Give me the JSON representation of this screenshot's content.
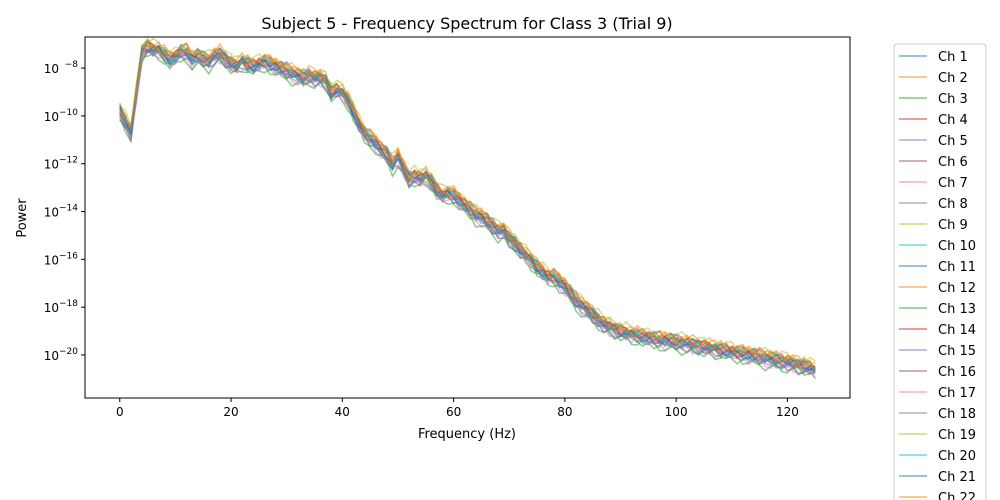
{
  "chart_data": {
    "type": "line",
    "title": "Subject 5 - Frequency Spectrum for Class 3 (Trial 9)",
    "xlabel": "Frequency (Hz)",
    "ylabel": "Power",
    "xlim": [
      -6.25,
      131.25
    ],
    "ylim_log10": [
      -21.8,
      -6.7
    ],
    "y_scale": "log",
    "x_ticks": [
      0,
      20,
      40,
      60,
      80,
      100,
      120
    ],
    "x_tick_labels": [
      "0",
      "20",
      "40",
      "60",
      "80",
      "100",
      "120"
    ],
    "y_ticks_exponent": [
      -8,
      -10,
      -12,
      -14,
      -16,
      -18,
      -20
    ],
    "y_tick_base": "10",
    "y_tick_exponent_labels": [
      "−8",
      "−10",
      "−12",
      "−14",
      "−16",
      "−18",
      "−20"
    ],
    "grid": false,
    "legend_position": "outside-right",
    "x": [
      0,
      1,
      2,
      3,
      4,
      5,
      6,
      7,
      8,
      9,
      10,
      11,
      12,
      13,
      14,
      15,
      16,
      17,
      18,
      19,
      20,
      21,
      22,
      23,
      24,
      25,
      26,
      27,
      28,
      29,
      30,
      31,
      32,
      33,
      34,
      35,
      36,
      37,
      38,
      39,
      40,
      41,
      42,
      43,
      44,
      45,
      46,
      47,
      48,
      49,
      50,
      51,
      52,
      53,
      54,
      55,
      56,
      57,
      58,
      59,
      60,
      61,
      62,
      63,
      64,
      65,
      66,
      67,
      68,
      69,
      70,
      71,
      72,
      73,
      74,
      75,
      76,
      77,
      78,
      79,
      80,
      81,
      82,
      83,
      84,
      85,
      86,
      87,
      88,
      89,
      90,
      91,
      92,
      93,
      94,
      95,
      96,
      97,
      98,
      99,
      100,
      101,
      102,
      103,
      104,
      105,
      106,
      107,
      108,
      109,
      110,
      111,
      112,
      113,
      114,
      115,
      116,
      117,
      118,
      119,
      120,
      121,
      122,
      123,
      124,
      125
    ],
    "base_log10_power": [
      -9.8,
      -10.2,
      -10.7,
      -9.0,
      -7.3,
      -7.1,
      -7.2,
      -7.2,
      -7.4,
      -7.6,
      -7.5,
      -7.3,
      -7.3,
      -7.6,
      -7.5,
      -7.6,
      -7.7,
      -7.5,
      -7.4,
      -7.6,
      -7.8,
      -7.9,
      -7.7,
      -7.8,
      -7.9,
      -7.8,
      -7.7,
      -7.8,
      -7.9,
      -8.0,
      -8.1,
      -8.2,
      -8.3,
      -8.4,
      -8.3,
      -8.4,
      -8.4,
      -8.5,
      -9.0,
      -8.9,
      -9.0,
      -9.3,
      -9.8,
      -10.3,
      -10.7,
      -10.9,
      -11.1,
      -11.4,
      -11.6,
      -12.0,
      -11.7,
      -12.2,
      -12.6,
      -12.5,
      -12.6,
      -12.5,
      -12.7,
      -13.1,
      -13.3,
      -13.2,
      -13.3,
      -13.5,
      -13.7,
      -13.9,
      -14.1,
      -14.2,
      -14.4,
      -14.6,
      -14.8,
      -14.8,
      -15.1,
      -15.3,
      -15.6,
      -15.8,
      -16.0,
      -16.3,
      -16.5,
      -16.7,
      -16.7,
      -16.9,
      -17.1,
      -17.4,
      -17.7,
      -17.9,
      -18.1,
      -18.3,
      -18.5,
      -18.7,
      -18.8,
      -18.9,
      -19.0,
      -19.05,
      -19.1,
      -19.15,
      -19.2,
      -19.25,
      -19.3,
      -19.33,
      -19.36,
      -19.4,
      -19.44,
      -19.48,
      -19.52,
      -19.56,
      -19.6,
      -19.64,
      -19.68,
      -19.72,
      -19.76,
      -19.8,
      -19.84,
      -19.88,
      -19.92,
      -19.96,
      -20.0,
      -20.05,
      -20.1,
      -20.15,
      -20.2,
      -20.25,
      -20.3,
      -20.35,
      -20.4,
      -20.45,
      -20.5,
      -20.6
    ],
    "series": [
      {
        "name": "Ch 1",
        "color": "#1f77b4",
        "offset": 0.0
      },
      {
        "name": "Ch 2",
        "color": "#ff7f0e",
        "offset": 0.15
      },
      {
        "name": "Ch 3",
        "color": "#2ca02c",
        "offset": -0.25
      },
      {
        "name": "Ch 4",
        "color": "#d62728",
        "offset": 0.1
      },
      {
        "name": "Ch 5",
        "color": "#9467bd",
        "offset": -0.05
      },
      {
        "name": "Ch 6",
        "color": "#8c564b",
        "offset": 0.05
      },
      {
        "name": "Ch 7",
        "color": "#e377c2",
        "offset": -0.2
      },
      {
        "name": "Ch 8",
        "color": "#7f7f7f",
        "offset": -0.1
      },
      {
        "name": "Ch 9",
        "color": "#bcbd22",
        "offset": 0.2
      },
      {
        "name": "Ch 10",
        "color": "#17becf",
        "offset": 0.08
      },
      {
        "name": "Ch 11",
        "color": "#1f77b4",
        "offset": -0.15
      },
      {
        "name": "Ch 12",
        "color": "#ff7f0e",
        "offset": 0.12
      },
      {
        "name": "Ch 13",
        "color": "#2ca02c",
        "offset": -0.3
      },
      {
        "name": "Ch 14",
        "color": "#d62728",
        "offset": 0.02
      },
      {
        "name": "Ch 15",
        "color": "#9467bd",
        "offset": -0.08
      },
      {
        "name": "Ch 16",
        "color": "#8c564b",
        "offset": 0.06
      },
      {
        "name": "Ch 17",
        "color": "#e377c2",
        "offset": -0.18
      },
      {
        "name": "Ch 18",
        "color": "#7f7f7f",
        "offset": -0.12
      },
      {
        "name": "Ch 19",
        "color": "#bcbd22",
        "offset": 0.18
      },
      {
        "name": "Ch 20",
        "color": "#17becf",
        "offset": 0.0
      },
      {
        "name": "Ch 21",
        "color": "#1f77b4",
        "offset": -0.02
      },
      {
        "name": "Ch 22",
        "color": "#ff7f0e",
        "offset": 0.1
      }
    ]
  }
}
